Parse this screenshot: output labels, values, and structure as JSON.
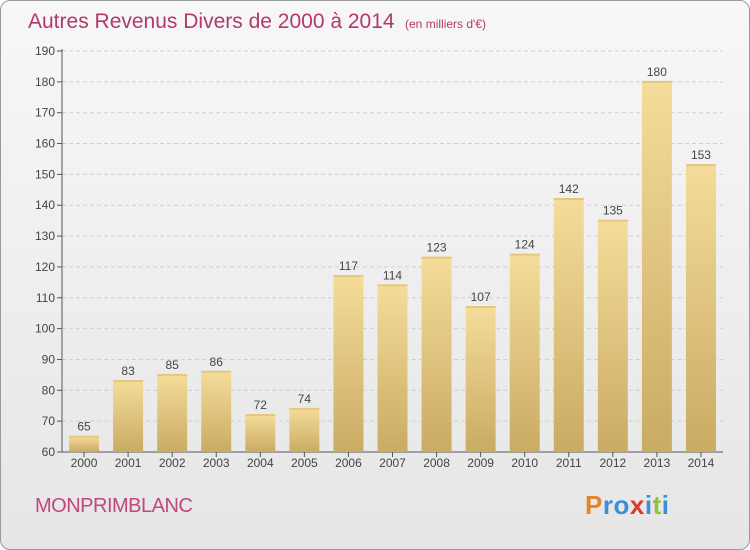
{
  "title": "Autres Revenus Divers de 2000 à 2014",
  "unit": "(en milliers d'€)",
  "place": "MONPRIMBLANC",
  "logo": {
    "text": "Proxiti",
    "letters": [
      {
        "ch": "P",
        "color": "#e8832a"
      },
      {
        "ch": "r",
        "color": "#3a8fd8"
      },
      {
        "ch": "o",
        "color": "#3a8fd8"
      },
      {
        "ch": "x",
        "color": "#d93a2e"
      },
      {
        "ch": "i",
        "color": "#3a8fd8"
      },
      {
        "ch": "t",
        "color": "#8cc63f"
      },
      {
        "ch": "i",
        "color": "#3a8fd8"
      }
    ]
  },
  "colors": {
    "bar_top": "#f5dc9a",
    "bar_bottom": "#c9ab63",
    "grid": "#d0d0d0",
    "axis": "#555555"
  },
  "chart_data": {
    "type": "bar",
    "categories": [
      "2000",
      "2001",
      "2002",
      "2003",
      "2004",
      "2005",
      "2006",
      "2007",
      "2008",
      "2009",
      "2010",
      "2011",
      "2012",
      "2013",
      "2014"
    ],
    "values": [
      65,
      83,
      85,
      86,
      72,
      74,
      117,
      114,
      123,
      107,
      124,
      142,
      135,
      180,
      153
    ],
    "title": "Autres Revenus Divers de 2000 à 2014",
    "xlabel": "",
    "ylabel": "",
    "ylim": [
      60,
      190
    ],
    "yticks": [
      60,
      70,
      80,
      90,
      100,
      110,
      120,
      130,
      140,
      150,
      160,
      170,
      180,
      190
    ],
    "grid": true,
    "data_labels": true
  }
}
